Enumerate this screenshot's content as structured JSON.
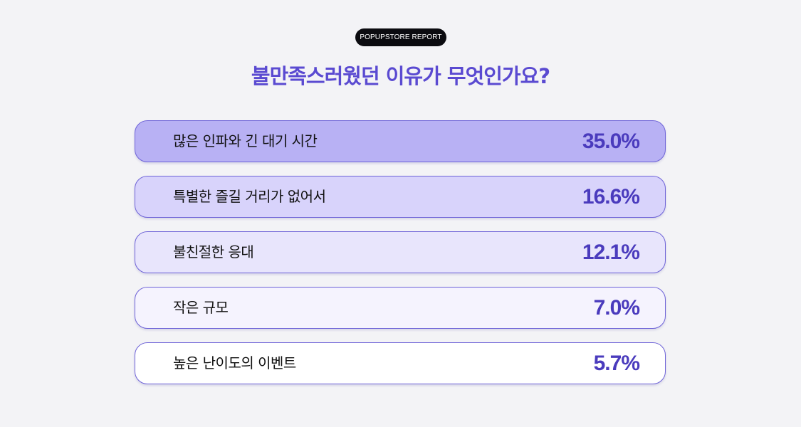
{
  "badge": "POPUPSTORE REPORT",
  "title": "불만족스러웠던 이유가 무엇인가요?",
  "colors": {
    "accent": "#4a3bbd",
    "title": "#5a4ad1",
    "border": "#6f64d8",
    "fills": [
      "#b8b1f4",
      "#d8d3fb",
      "#e8e5fc",
      "#f5f3fe",
      "#ffffff"
    ]
  },
  "chart_data": {
    "type": "table",
    "title": "불만족스러웠던 이유가 무엇인가요?",
    "unit": "%",
    "categories": [
      "많은 인파와 긴 대기 시간",
      "특별한 즐길 거리가 없어서",
      "불친절한 응대",
      "작은 규모",
      "높은 난이도의 이벤트"
    ],
    "values": [
      35.0,
      16.6,
      12.1,
      7.0,
      5.7
    ],
    "value_labels": [
      "35.0%",
      "16.6%",
      "12.1%",
      "7.0%",
      "5.7%"
    ]
  }
}
